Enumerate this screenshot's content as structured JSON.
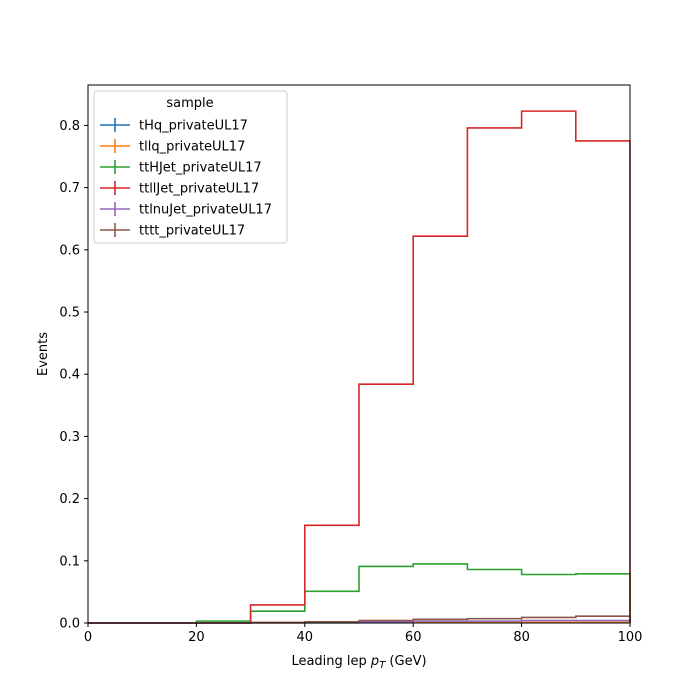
{
  "chart_data": {
    "type": "step-histogram",
    "xlabel_prefix": "Leading lep ",
    "xlabel_var": "p",
    "xlabel_sub": "T",
    "xlabel_suffix": " (GeV)",
    "ylabel": "Events",
    "xlim": [
      0,
      100
    ],
    "ylim": [
      0,
      0.865
    ],
    "xticks": [
      0,
      20,
      40,
      60,
      80,
      100
    ],
    "yticks": [
      0.0,
      0.1,
      0.2,
      0.3,
      0.4,
      0.5,
      0.6,
      0.7,
      0.8
    ],
    "bin_edges": [
      0,
      10,
      20,
      30,
      40,
      50,
      60,
      70,
      80,
      90,
      100
    ],
    "legend_title": "sample",
    "legend_position": "upper-left",
    "series": [
      {
        "name": "tHq_privateUL17",
        "color": "#1f77b4",
        "values": [
          0,
          0,
          0,
          0.0002,
          0.0003,
          0.0005,
          0.0006,
          0.0007,
          0.0008,
          0.0009
        ]
      },
      {
        "name": "tllq_privateUL17",
        "color": "#ff7f0e",
        "values": [
          0,
          0,
          0,
          0.0003,
          0.0004,
          0.0006,
          0.0007,
          0.0008,
          0.0009,
          0.001
        ]
      },
      {
        "name": "ttHJet_privateUL17",
        "color": "#2ca02c",
        "values": [
          0,
          0,
          0.003,
          0.019,
          0.051,
          0.091,
          0.095,
          0.086,
          0.078,
          0.079
        ]
      },
      {
        "name": "ttllJet_privateUL17",
        "color": "#d62728",
        "values": [
          0,
          0,
          0,
          0.029,
          0.157,
          0.384,
          0.622,
          0.796,
          0.823,
          0.775
        ]
      },
      {
        "name": "ttlnuJet_privateUL17",
        "color": "#9467bd",
        "values": [
          0,
          0,
          0,
          0.0005,
          0.0015,
          0.002,
          0.003,
          0.003,
          0.004,
          0.004
        ]
      },
      {
        "name": "tttt_privateUL17",
        "color": "#8c564b",
        "values": [
          0,
          0,
          0,
          0.001,
          0.002,
          0.004,
          0.006,
          0.007,
          0.009,
          0.011
        ]
      }
    ]
  }
}
